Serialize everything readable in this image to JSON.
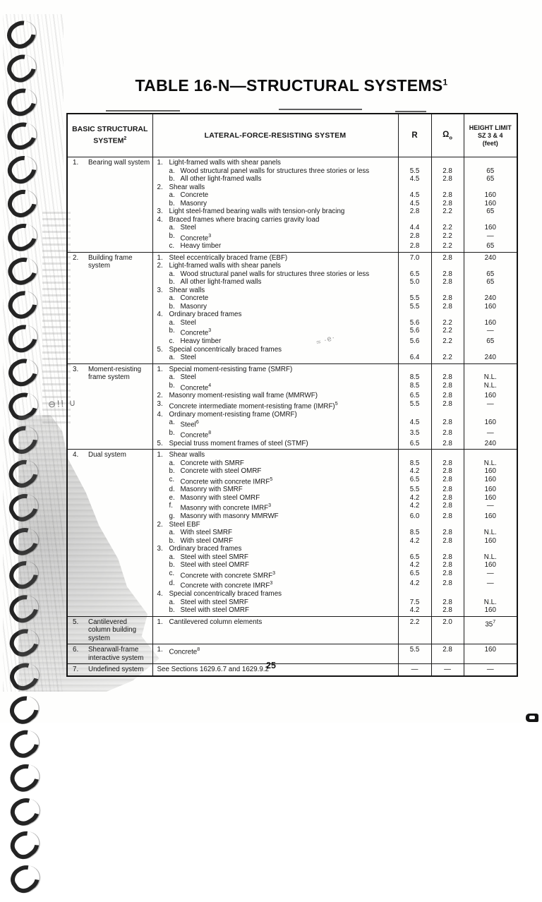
{
  "title": {
    "text": "TABLE 16-N—STRUCTURAL SYSTEMS",
    "sup": "1"
  },
  "page_number": "25",
  "annotations": {
    "pencil_mark": "⊖!! ∪",
    "scribble": "≈ ·e·"
  },
  "table": {
    "header": {
      "col1_line1": "BASIC STRUCTURAL",
      "col1_line2": "SYSTEM",
      "col1_sup": "2",
      "col2": "LATERAL-FORCE-RESISTING SYSTEM",
      "col3": "R",
      "col4": "Ω",
      "col4_sub": "o",
      "col5_line1": "HEIGHT LIMIT",
      "col5_line2": "SZ 3 & 4",
      "col5_line3": "(feet)"
    },
    "rows": [
      {
        "num": "1.",
        "label": "Bearing wall system",
        "lines": [
          {
            "n": "1.",
            "t": "Light-framed walls with shear panels"
          },
          {
            "n": "a.",
            "lvl": 1,
            "t": "Wood structural panel walls for structures three stories or less",
            "r": "5.5",
            "o": "2.8",
            "h": "65"
          },
          {
            "n": "b.",
            "lvl": 1,
            "t": "All other light-framed walls",
            "r": "4.5",
            "o": "2.8",
            "h": "65"
          },
          {
            "n": "2.",
            "t": "Shear walls"
          },
          {
            "n": "a.",
            "lvl": 1,
            "t": "Concrete",
            "r": "4.5",
            "o": "2.8",
            "h": "160"
          },
          {
            "n": "b.",
            "lvl": 1,
            "t": "Masonry",
            "r": "4.5",
            "o": "2.8",
            "h": "160"
          },
          {
            "n": "3.",
            "t": "Light steel-framed bearing walls with tension-only bracing",
            "r": "2.8",
            "o": "2.2",
            "h": "65"
          },
          {
            "n": "4.",
            "t": "Braced frames where bracing carries gravity load"
          },
          {
            "n": "a.",
            "lvl": 1,
            "t": "Steel",
            "r": "4.4",
            "o": "2.2",
            "h": "160"
          },
          {
            "n": "b.",
            "lvl": 1,
            "t": "Concrete",
            "sup": "3",
            "r": "2.8",
            "o": "2.2",
            "h": "—"
          },
          {
            "n": "c.",
            "lvl": 1,
            "t": "Heavy timber",
            "r": "2.8",
            "o": "2.2",
            "h": "65"
          }
        ]
      },
      {
        "num": "2.",
        "label": "Building frame system",
        "lines": [
          {
            "n": "1.",
            "t": "Steel eccentrically braced frame (EBF)",
            "r": "7.0",
            "o": "2.8",
            "h": "240"
          },
          {
            "n": "2.",
            "t": "Light-framed walls with shear panels"
          },
          {
            "n": "a.",
            "lvl": 1,
            "t": "Wood structural panel walls for structures three stories or less",
            "r": "6.5",
            "o": "2.8",
            "h": "65"
          },
          {
            "n": "b.",
            "lvl": 1,
            "t": "All other light-framed walls",
            "r": "5.0",
            "o": "2.8",
            "h": "65"
          },
          {
            "n": "3.",
            "t": "Shear walls"
          },
          {
            "n": "a.",
            "lvl": 1,
            "t": "Concrete",
            "r": "5.5",
            "o": "2.8",
            "h": "240"
          },
          {
            "n": "b.",
            "lvl": 1,
            "t": "Masonry",
            "r": "5.5",
            "o": "2.8",
            "h": "160"
          },
          {
            "n": "4.",
            "t": "Ordinary braced frames"
          },
          {
            "n": "a.",
            "lvl": 1,
            "t": "Steel",
            "r": "5.6",
            "o": "2.2",
            "h": "160"
          },
          {
            "n": "b.",
            "lvl": 1,
            "t": "Concrete",
            "sup": "3",
            "r": "5.6",
            "o": "2.2",
            "h": "—"
          },
          {
            "n": "c.",
            "lvl": 1,
            "t": "Heavy timber",
            "r": "5.6",
            "o": "2.2",
            "h": "65"
          },
          {
            "n": "5.",
            "t": "Special concentrically braced frames"
          },
          {
            "n": "a.",
            "lvl": 1,
            "t": "Steel",
            "r": "6.4",
            "o": "2.2",
            "h": "240"
          }
        ]
      },
      {
        "num": "3.",
        "label": "Moment-resisting frame system",
        "lines": [
          {
            "n": "1.",
            "t": "Special moment-resisting frame (SMRF)"
          },
          {
            "n": "a.",
            "lvl": 1,
            "t": "Steel",
            "r": "8.5",
            "o": "2.8",
            "h": "N.L."
          },
          {
            "n": "b.",
            "lvl": 1,
            "t": "Concrete",
            "sup": "4",
            "r": "8.5",
            "o": "2.8",
            "h": "N.L."
          },
          {
            "n": "2.",
            "t": "Masonry moment-resisting wall frame (MMRWF)",
            "r": "6.5",
            "o": "2.8",
            "h": "160"
          },
          {
            "n": "3.",
            "t": "Concrete intermediate moment-resisting frame (IMRF)",
            "sup": "5",
            "r": "5.5",
            "o": "2.8",
            "h": "—"
          },
          {
            "n": "4.",
            "t": "Ordinary moment-resisting frame (OMRF)"
          },
          {
            "n": "a.",
            "lvl": 1,
            "t": "Steel",
            "sup": "6",
            "r": "4.5",
            "o": "2.8",
            "h": "160"
          },
          {
            "n": "b.",
            "lvl": 1,
            "t": "Concrete",
            "sup": "8",
            "r": "3.5",
            "o": "2.8",
            "h": "—"
          },
          {
            "n": "5.",
            "t": "Special truss moment frames of steel (STMF)",
            "r": "6.5",
            "o": "2.8",
            "h": "240"
          }
        ]
      },
      {
        "num": "4.",
        "label": "Dual system",
        "lines": [
          {
            "n": "1.",
            "t": "Shear walls"
          },
          {
            "n": "a.",
            "lvl": 1,
            "t": "Concrete with SMRF",
            "r": "8.5",
            "o": "2.8",
            "h": "N.L."
          },
          {
            "n": "b.",
            "lvl": 1,
            "t": "Concrete with steel OMRF",
            "r": "4.2",
            "o": "2.8",
            "h": "160"
          },
          {
            "n": "c.",
            "lvl": 1,
            "t": "Concrete with concrete IMRF",
            "sup": "5",
            "r": "6.5",
            "o": "2.8",
            "h": "160"
          },
          {
            "n": "d.",
            "lvl": 1,
            "t": "Masonry with SMRF",
            "r": "5.5",
            "o": "2.8",
            "h": "160"
          },
          {
            "n": "e.",
            "lvl": 1,
            "t": "Masonry with steel OMRF",
            "r": "4.2",
            "o": "2.8",
            "h": "160"
          },
          {
            "n": "f.",
            "lvl": 1,
            "t": "Masonry with concrete IMRF",
            "sup": "3",
            "r": "4.2",
            "o": "2.8",
            "h": "—"
          },
          {
            "n": "g.",
            "lvl": 1,
            "t": "Masonry with masonry MMRWF",
            "r": "6.0",
            "o": "2.8",
            "h": "160"
          },
          {
            "n": "2.",
            "t": "Steel EBF"
          },
          {
            "n": "a.",
            "lvl": 1,
            "t": "With steel SMRF",
            "r": "8.5",
            "o": "2.8",
            "h": "N.L."
          },
          {
            "n": "b.",
            "lvl": 1,
            "t": "With steel OMRF",
            "r": "4.2",
            "o": "2.8",
            "h": "160"
          },
          {
            "n": "3.",
            "t": "Ordinary braced frames"
          },
          {
            "n": "a.",
            "lvl": 1,
            "t": "Steel with steel SMRF",
            "r": "6.5",
            "o": "2.8",
            "h": "N.L."
          },
          {
            "n": "b.",
            "lvl": 1,
            "t": "Steel with steel OMRF",
            "r": "4.2",
            "o": "2.8",
            "h": "160"
          },
          {
            "n": "c.",
            "lvl": 1,
            "t": "Concrete with concrete SMRF",
            "sup": "3",
            "r": "6.5",
            "o": "2.8",
            "h": "—"
          },
          {
            "n": "d.",
            "lvl": 1,
            "t": "Concrete with concrete IMRF",
            "sup": "3",
            "r": "4.2",
            "o": "2.8",
            "h": "—"
          },
          {
            "n": "4.",
            "t": "Special concentrically braced frames"
          },
          {
            "n": "a.",
            "lvl": 1,
            "t": "Steel with steel SMRF",
            "r": "7.5",
            "o": "2.8",
            "h": "N.L."
          },
          {
            "n": "b.",
            "lvl": 1,
            "t": "Steel with steel OMRF",
            "r": "4.2",
            "o": "2.8",
            "h": "160"
          }
        ]
      },
      {
        "num": "5.",
        "label": "Cantilevered column building system",
        "lines": [
          {
            "n": "1.",
            "t": "Cantilevered column elements",
            "r": "2.2",
            "o": "2.0",
            "h": "35",
            "hs": "7"
          }
        ]
      },
      {
        "num": "6.",
        "label": "Shearwall-frame interactive system",
        "lines": [
          {
            "n": "1.",
            "t": "Concrete",
            "sup": "8",
            "r": "5.5",
            "o": "2.8",
            "h": "160"
          }
        ]
      },
      {
        "num": "7.",
        "label": "Undefined system",
        "lines": [
          {
            "n": "",
            "t": "See Sections 1629.6.7 and 1629.9.2",
            "r": "—",
            "o": "—",
            "h": "—"
          }
        ]
      }
    ]
  }
}
